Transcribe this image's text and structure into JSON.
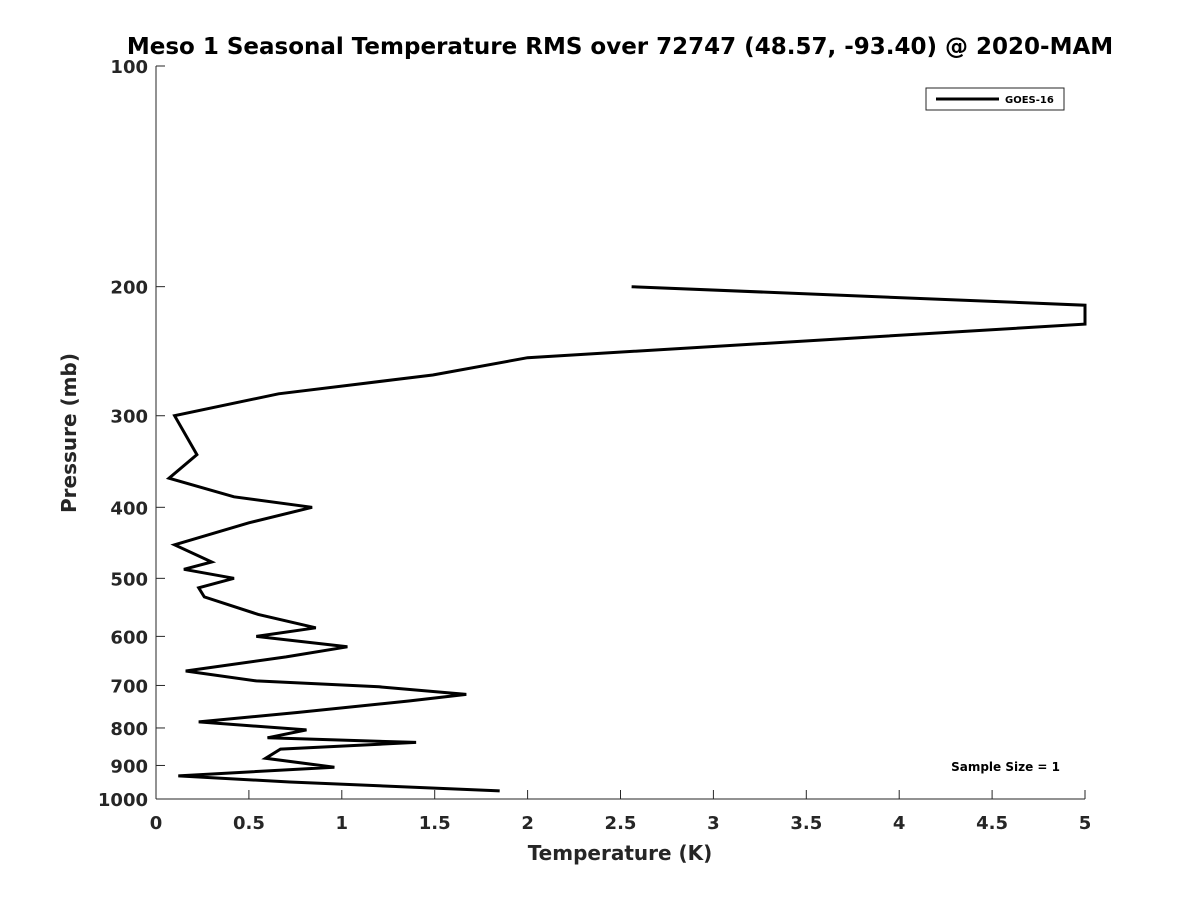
{
  "chart_data": {
    "type": "line",
    "title": "Meso 1 Seasonal Temperature RMS over 72747 (48.57, -93.40) @ 2020-MAM",
    "xlabel": "Temperature (K)",
    "ylabel": "Pressure (mb)",
    "xlim": [
      0,
      5
    ],
    "ylim": [
      100,
      1000
    ],
    "y_scale": "log",
    "y_reversed": true,
    "grid": false,
    "legend_position": "top-right",
    "x_ticks": [
      "0",
      "0.5",
      "1",
      "1.5",
      "2",
      "2.5",
      "3",
      "3.5",
      "4",
      "4.5",
      "5"
    ],
    "y_ticks": [
      "100",
      "200",
      "300",
      "400",
      "500",
      "600",
      "700",
      "800",
      "900",
      "1000"
    ],
    "annotation": "Sample Size = 1",
    "series_color": "#000000",
    "series": [
      {
        "name": "GOES-16",
        "points": [
          {
            "t": 2.56,
            "p": 200
          },
          {
            "t": 5.0,
            "p": 212
          },
          {
            "t": 5.0,
            "p": 225
          },
          {
            "t": 2.0,
            "p": 250
          },
          {
            "t": 1.49,
            "p": 264
          },
          {
            "t": 0.66,
            "p": 280
          },
          {
            "t": 0.1,
            "p": 300
          },
          {
            "t": 0.22,
            "p": 339
          },
          {
            "t": 0.07,
            "p": 365
          },
          {
            "t": 0.42,
            "p": 387
          },
          {
            "t": 0.84,
            "p": 400
          },
          {
            "t": 0.5,
            "p": 420
          },
          {
            "t": 0.1,
            "p": 450
          },
          {
            "t": 0.3,
            "p": 475
          },
          {
            "t": 0.15,
            "p": 486
          },
          {
            "t": 0.42,
            "p": 500
          },
          {
            "t": 0.23,
            "p": 515
          },
          {
            "t": 0.26,
            "p": 530
          },
          {
            "t": 0.55,
            "p": 560
          },
          {
            "t": 0.86,
            "p": 584
          },
          {
            "t": 0.54,
            "p": 600
          },
          {
            "t": 1.03,
            "p": 620
          },
          {
            "t": 0.7,
            "p": 640
          },
          {
            "t": 0.16,
            "p": 669
          },
          {
            "t": 0.54,
            "p": 690
          },
          {
            "t": 1.2,
            "p": 703
          },
          {
            "t": 1.67,
            "p": 720
          },
          {
            "t": 1.36,
            "p": 735
          },
          {
            "t": 0.76,
            "p": 762
          },
          {
            "t": 0.23,
            "p": 785
          },
          {
            "t": 0.81,
            "p": 805
          },
          {
            "t": 0.6,
            "p": 825
          },
          {
            "t": 1.4,
            "p": 837
          },
          {
            "t": 0.67,
            "p": 855
          },
          {
            "t": 0.59,
            "p": 880
          },
          {
            "t": 0.96,
            "p": 905
          },
          {
            "t": 0.12,
            "p": 930
          },
          {
            "t": 0.72,
            "p": 948
          },
          {
            "t": 1.85,
            "p": 975
          }
        ]
      }
    ]
  }
}
